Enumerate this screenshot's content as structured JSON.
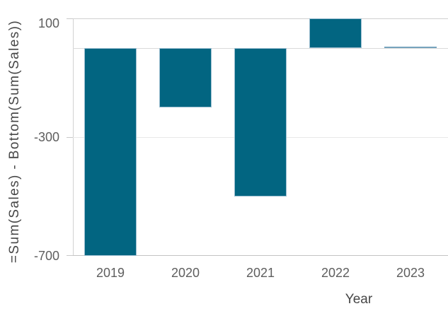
{
  "chart_data": {
    "type": "bar",
    "title": "",
    "xlabel": "Year",
    "ylabel": "=Sum(Sales) - Bottom(Sum(Sales))",
    "categories": [
      "2019",
      "2020",
      "2021",
      "2022",
      "2023"
    ],
    "values": [
      -700,
      -200,
      -500,
      100,
      0
    ],
    "ylim": [
      -700,
      100
    ],
    "yticks": [
      100,
      -300,
      -700
    ],
    "ytick_labels": [
      "100",
      "-300",
      "-700"
    ],
    "grid": "horizontal",
    "legend_position": "none",
    "zero_line": true,
    "bar_color": "#026581",
    "bar_border_color": "#9bbdd0",
    "sliver_color": "#76a3bd"
  },
  "colors": {
    "background": "#ffffff",
    "gridline": "#e8e8e8",
    "axis_line": "#d2d2d2",
    "tick_text": "#5e5e5e",
    "title_text": "#474747"
  }
}
